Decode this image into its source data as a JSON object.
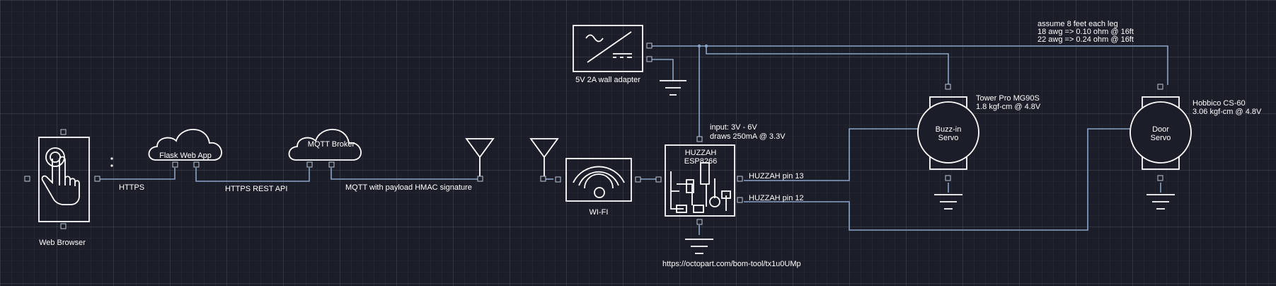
{
  "diagram": {
    "labels": {
      "web_browser": "Web Browser",
      "https": "HTTPS",
      "flask_web_app": "Flask Web App",
      "https_rest_api": "HTTPS REST API",
      "mqtt_broker": "MQTT Broker",
      "mqtt_payload": "MQTT with payload HMAC signature",
      "wifi": "WI-FI",
      "wall_adapter": "5V 2A wall adapter",
      "huzzah_line1": "HUZZAH",
      "huzzah_line2": "ESP8266",
      "huzzah_input_line1": "input: 3V - 6V",
      "huzzah_input_line2": "draws 250mA @ 3.3V",
      "pin13": "HUZZAH pin 13",
      "pin12": "HUZZAH pin 12",
      "octopart_url": "https://octopart.com/bom-tool/tx1u0UMp",
      "wire_note_line1": "assume 8 feet each leg",
      "wire_note_line2": "18 awg => 0.10 ohm @ 16ft",
      "wire_note_line3": "22 awg => 0.24 ohm @ 16ft",
      "buzz_servo_line1": "Buzz-in",
      "buzz_servo_line2": "Servo",
      "buzz_spec_line1": "Tower Pro MG90S",
      "buzz_spec_line2": "1.8 kgf-cm @ 4.8V",
      "door_servo_line1": "Door",
      "door_servo_line2": "Servo",
      "door_spec_line1": "Hobbico CS-60",
      "door_spec_line2": "3.06 kgf-cm @ 4.8V"
    },
    "colors": {
      "background": "#1b1e29",
      "stroke": "#ffffff",
      "wire": "#8aa4c8"
    }
  }
}
